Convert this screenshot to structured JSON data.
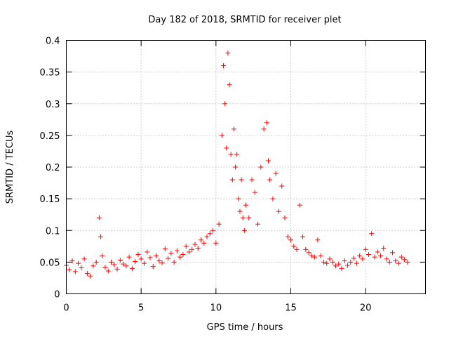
{
  "chart_data": {
    "type": "scatter",
    "title": "Day 182 of 2018, SRMTID for receiver plet",
    "xlabel": "GPS time / hours",
    "ylabel": "SRMTID / TECUs",
    "xlim": [
      0,
      24
    ],
    "ylim": [
      0,
      0.4
    ],
    "xticks": [
      0,
      5,
      10,
      15,
      20
    ],
    "xtick_labels": [
      "0",
      "5",
      "10",
      "15",
      "20"
    ],
    "yticks": [
      0,
      0.05,
      0.1,
      0.15,
      0.2,
      0.25,
      0.3,
      0.35,
      0.4
    ],
    "ytick_labels": [
      "0",
      "0.05",
      "0.1",
      "0.15",
      "0.2",
      "0.25",
      "0.3",
      "0.35",
      "0.4"
    ],
    "grid": true,
    "marker": "plus",
    "color": "#ff0000",
    "series": [
      {
        "name": "SRMTID",
        "x": [
          0.0,
          0.2,
          0.4,
          0.6,
          0.8,
          1.0,
          1.2,
          1.4,
          1.6,
          1.8,
          2.0,
          2.2,
          2.3,
          2.4,
          2.6,
          2.8,
          3.0,
          3.2,
          3.4,
          3.6,
          3.8,
          4.0,
          4.2,
          4.4,
          4.6,
          4.8,
          5.0,
          5.2,
          5.4,
          5.6,
          5.8,
          6.0,
          6.2,
          6.4,
          6.6,
          6.8,
          7.0,
          7.2,
          7.4,
          7.6,
          7.8,
          8.0,
          8.2,
          8.4,
          8.6,
          8.8,
          9.0,
          9.2,
          9.4,
          9.6,
          9.8,
          10.0,
          10.2,
          10.4,
          10.5,
          10.6,
          10.7,
          10.8,
          10.9,
          11.0,
          11.1,
          11.2,
          11.3,
          11.4,
          11.5,
          11.6,
          11.7,
          11.8,
          11.9,
          12.0,
          12.2,
          12.4,
          12.6,
          12.8,
          13.0,
          13.2,
          13.4,
          13.5,
          13.6,
          13.8,
          14.0,
          14.2,
          14.4,
          14.6,
          14.8,
          15.0,
          15.2,
          15.4,
          15.6,
          15.8,
          16.0,
          16.2,
          16.4,
          16.6,
          16.8,
          17.0,
          17.2,
          17.4,
          17.6,
          17.8,
          18.0,
          18.2,
          18.4,
          18.6,
          18.8,
          19.0,
          19.2,
          19.4,
          19.6,
          19.8,
          20.0,
          20.2,
          20.4,
          20.6,
          20.8,
          21.0,
          21.2,
          21.4,
          21.6,
          21.8,
          22.0,
          22.2,
          22.4,
          22.6,
          22.8
        ],
        "y": [
          0.045,
          0.038,
          0.052,
          0.035,
          0.048,
          0.041,
          0.055,
          0.032,
          0.028,
          0.044,
          0.05,
          0.12,
          0.09,
          0.06,
          0.042,
          0.036,
          0.05,
          0.046,
          0.039,
          0.053,
          0.047,
          0.044,
          0.058,
          0.04,
          0.051,
          0.062,
          0.055,
          0.048,
          0.066,
          0.057,
          0.043,
          0.06,
          0.052,
          0.049,
          0.071,
          0.056,
          0.064,
          0.05,
          0.068,
          0.058,
          0.062,
          0.075,
          0.066,
          0.07,
          0.078,
          0.072,
          0.085,
          0.08,
          0.09,
          0.095,
          0.1,
          0.08,
          0.11,
          0.25,
          0.36,
          0.3,
          0.23,
          0.38,
          0.33,
          0.22,
          0.18,
          0.26,
          0.2,
          0.22,
          0.15,
          0.13,
          0.18,
          0.12,
          0.1,
          0.14,
          0.12,
          0.18,
          0.16,
          0.11,
          0.2,
          0.26,
          0.27,
          0.21,
          0.18,
          0.15,
          0.19,
          0.13,
          0.17,
          0.12,
          0.09,
          0.085,
          0.075,
          0.07,
          0.14,
          0.09,
          0.07,
          0.065,
          0.06,
          0.058,
          0.085,
          0.06,
          0.05,
          0.048,
          0.055,
          0.05,
          0.044,
          0.047,
          0.04,
          0.052,
          0.045,
          0.05,
          0.056,
          0.048,
          0.06,
          0.055,
          0.07,
          0.062,
          0.095,
          0.058,
          0.066,
          0.06,
          0.072,
          0.055,
          0.05,
          0.065,
          0.052,
          0.048,
          0.058,
          0.054,
          0.05
        ]
      }
    ]
  }
}
